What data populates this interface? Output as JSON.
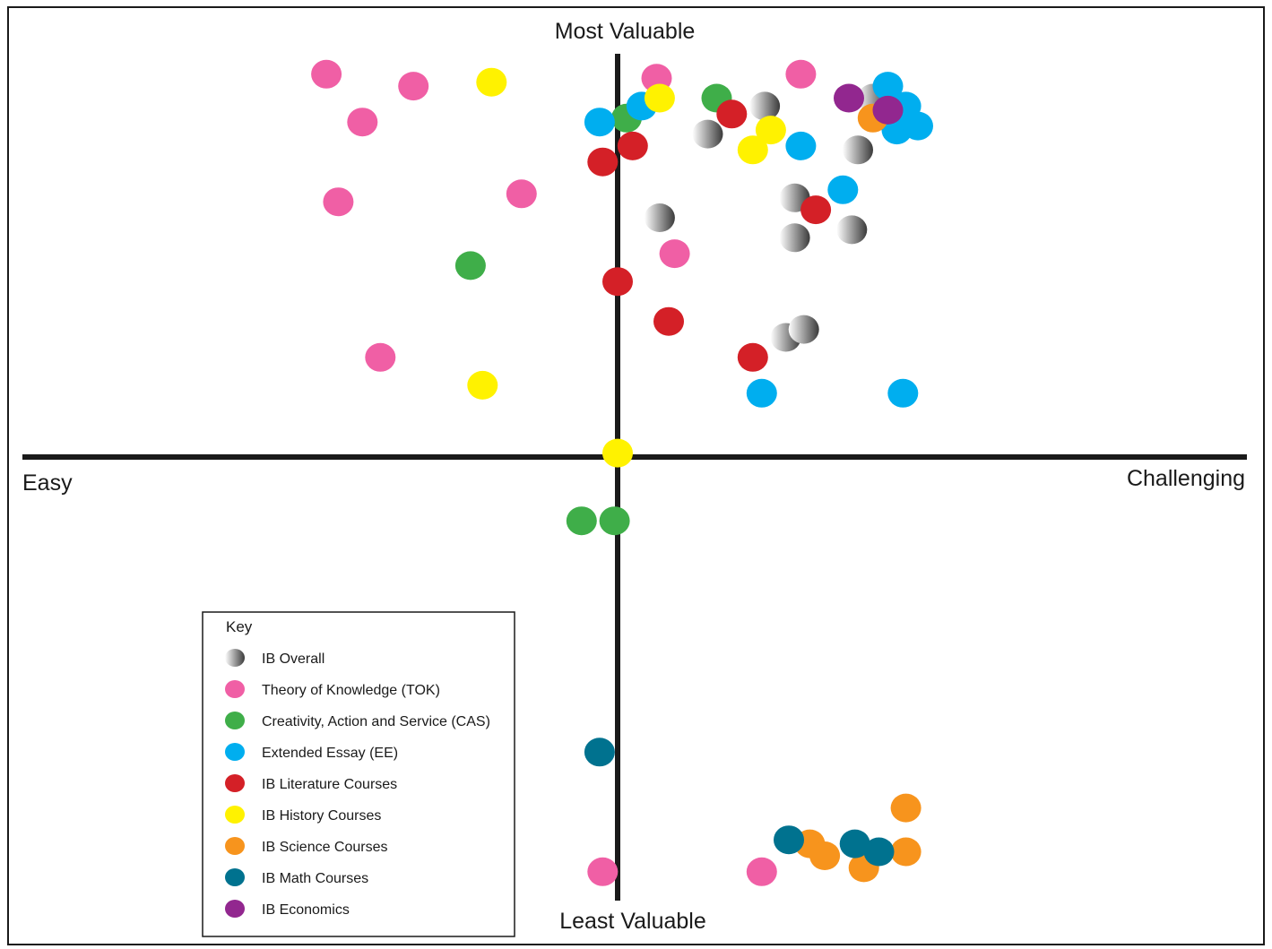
{
  "chart_data": {
    "type": "scatter",
    "title": "",
    "axes": {
      "top_label": "Most Valuable",
      "bottom_label": "Least Valuable",
      "left_label": "Easy",
      "right_label": "Challenging"
    },
    "ranges": {
      "x": [
        -10,
        10
      ],
      "y": [
        -10,
        10
      ]
    },
    "grid": false,
    "legend": {
      "title": "Key",
      "placement": "bottom-left"
    },
    "series": [
      {
        "name": "IB Overall",
        "color": "#6e6e6e",
        "gradient": true,
        "points": [
          [
            4.9,
            8.8
          ],
          [
            3.0,
            8.1
          ],
          [
            8.5,
            9.0
          ],
          [
            8.0,
            7.7
          ],
          [
            1.4,
            6.0
          ],
          [
            5.9,
            6.5
          ],
          [
            5.9,
            5.5
          ],
          [
            7.8,
            5.7
          ],
          [
            5.6,
            3.0
          ],
          [
            6.2,
            3.2
          ]
        ]
      },
      {
        "name": "Theory of Knowledge (TOK)",
        "color": "#f05fa5",
        "points": [
          [
            -9.7,
            9.6
          ],
          [
            -6.8,
            9.3
          ],
          [
            -8.5,
            8.4
          ],
          [
            -9.3,
            6.4
          ],
          [
            -3.2,
            6.6
          ],
          [
            -7.9,
            2.5
          ],
          [
            1.3,
            9.5
          ],
          [
            6.1,
            9.6
          ],
          [
            1.9,
            5.1
          ],
          [
            -9.7,
            -10.6
          ],
          [
            -0.5,
            -10.4
          ],
          [
            4.8,
            -10.4
          ]
        ]
      },
      {
        "name": "Creativity, Action and Service (CAS)",
        "color": "#3fae49",
        "points": [
          [
            -4.9,
            4.8
          ],
          [
            3.3,
            9.0
          ],
          [
            0.3,
            8.5
          ],
          [
            -1.2,
            -1.6
          ],
          [
            -0.1,
            -1.6
          ]
        ]
      },
      {
        "name": "Extended Essay (EE)",
        "color": "#00aeef",
        "points": [
          [
            0.8,
            8.8
          ],
          [
            -0.6,
            8.4
          ],
          [
            9.0,
            9.3
          ],
          [
            9.6,
            8.8
          ],
          [
            9.3,
            8.2
          ],
          [
            10.0,
            8.3
          ],
          [
            6.1,
            7.8
          ],
          [
            7.5,
            6.7
          ],
          [
            4.8,
            1.6
          ],
          [
            9.5,
            1.6
          ]
        ]
      },
      {
        "name": "IB Literature Courses",
        "color": "#d42027",
        "points": [
          [
            3.8,
            8.6
          ],
          [
            -0.5,
            7.4
          ],
          [
            0.5,
            7.8
          ],
          [
            6.6,
            6.2
          ],
          [
            0.0,
            4.4
          ],
          [
            1.7,
            3.4
          ],
          [
            4.5,
            2.5
          ]
        ]
      },
      {
        "name": "IB History Courses",
        "color": "#fff200",
        "points": [
          [
            -4.2,
            9.4
          ],
          [
            1.4,
            9.0
          ],
          [
            5.1,
            8.2
          ],
          [
            4.5,
            7.7
          ],
          [
            -4.5,
            1.8
          ],
          [
            0.0,
            0.1
          ],
          [
            -9.3,
            -9.6
          ],
          [
            -8.5,
            -10.5
          ]
        ]
      },
      {
        "name": "IB Science Courses",
        "color": "#f7941d",
        "points": [
          [
            8.5,
            8.5
          ],
          [
            6.4,
            -9.7
          ],
          [
            6.9,
            -10.0
          ],
          [
            8.2,
            -10.3
          ],
          [
            9.6,
            -8.8
          ],
          [
            9.6,
            -9.9
          ]
        ]
      },
      {
        "name": "IB Math Courses",
        "color": "#00728f",
        "points": [
          [
            -0.6,
            -7.4
          ],
          [
            5.7,
            -9.6
          ],
          [
            7.9,
            -9.7
          ],
          [
            8.7,
            -9.9
          ]
        ]
      },
      {
        "name": "IB Economics",
        "color": "#92278f",
        "points": [
          [
            7.7,
            9.0
          ],
          [
            9.0,
            8.7
          ]
        ]
      }
    ]
  }
}
